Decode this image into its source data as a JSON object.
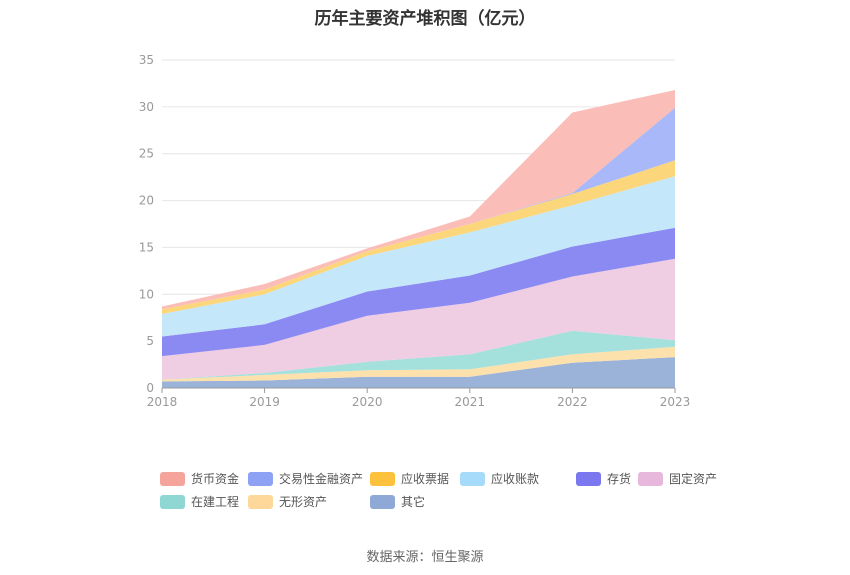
{
  "title": "历年主要资产堆积图（亿元）",
  "source": "数据来源：恒生聚源",
  "chart_data": {
    "type": "area",
    "stacked": true,
    "x": [
      "2018",
      "2019",
      "2020",
      "2021",
      "2022",
      "2023"
    ],
    "ylim": [
      0,
      35
    ],
    "yticks": [
      0,
      5,
      10,
      15,
      20,
      25,
      30,
      35
    ],
    "grid": true,
    "legend_position": "bottom",
    "series": [
      {
        "name": "其它",
        "color": "#9bb3d9",
        "values": [
          0.7,
          0.8,
          1.2,
          1.2,
          2.7,
          3.3
        ]
      },
      {
        "name": "无形资产",
        "color": "#fde1ad",
        "values": [
          0.2,
          0.6,
          0.7,
          0.8,
          0.9,
          1.1
        ]
      },
      {
        "name": "在建工程",
        "color": "#a4e0dc",
        "values": [
          0.0,
          0.2,
          0.9,
          1.6,
          2.5,
          0.7
        ]
      },
      {
        "name": "固定资产",
        "color": "#efcde3",
        "values": [
          2.5,
          3.0,
          4.9,
          5.5,
          5.8,
          8.7
        ]
      },
      {
        "name": "存货",
        "color": "#8b8af2",
        "values": [
          2.1,
          2.2,
          2.6,
          2.9,
          3.2,
          3.3
        ]
      },
      {
        "name": "应收账款",
        "color": "#c4e7fa",
        "values": [
          2.4,
          3.2,
          3.8,
          4.6,
          4.4,
          5.5
        ]
      },
      {
        "name": "应收票据",
        "color": "#fcd67a",
        "values": [
          0.5,
          0.5,
          0.5,
          0.9,
          1.2,
          1.7
        ]
      },
      {
        "name": "交易性金融资产",
        "color": "#a8b8f8",
        "values": [
          0.0,
          0.0,
          0.0,
          0.0,
          0.1,
          5.6
        ]
      },
      {
        "name": "货币资金",
        "color": "#fbbdb8",
        "values": [
          0.3,
          0.6,
          0.3,
          0.8,
          8.6,
          1.9
        ]
      }
    ]
  },
  "legend": [
    {
      "name": "货币资金",
      "color": "#f5a49c"
    },
    {
      "name": "交易性金融资产",
      "color": "#8ea2f5"
    },
    {
      "name": "应收票据",
      "color": "#fcc23d"
    },
    {
      "name": "应收账款",
      "color": "#a6dbf9"
    },
    {
      "name": "存货",
      "color": "#7b78ef"
    },
    {
      "name": "固定资产",
      "color": "#e8b8dc"
    },
    {
      "name": "在建工程",
      "color": "#8ed7d3"
    },
    {
      "name": "无形资产",
      "color": "#fdd89a"
    },
    {
      "name": "其它",
      "color": "#8fa9d6"
    }
  ]
}
